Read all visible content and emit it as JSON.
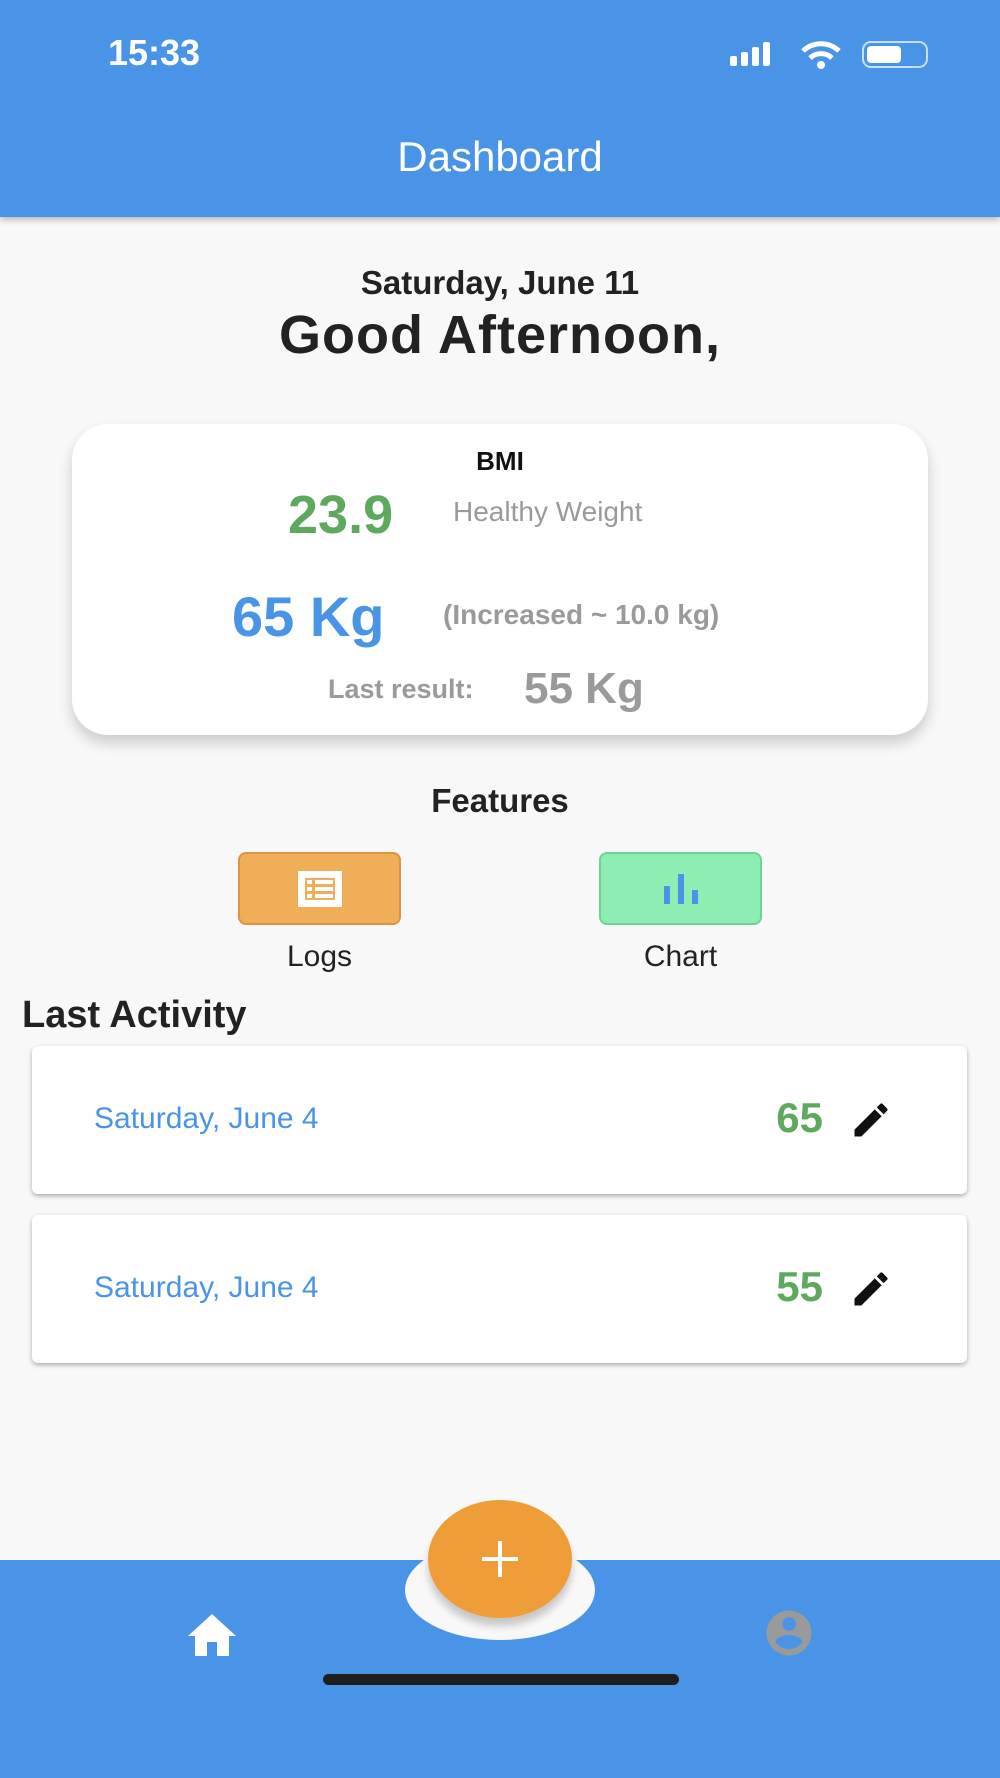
{
  "status_bar": {
    "time": "15:33"
  },
  "header": {
    "title": "Dashboard"
  },
  "greeting": {
    "date": "Saturday, June 11",
    "text": "Good Afternoon,"
  },
  "bmi_card": {
    "label": "BMI",
    "bmi_value": "23.9",
    "bmi_category": "Healthy Weight",
    "weight": "65 Kg",
    "change": "(Increased ~ 10.0 kg)",
    "last_result_label": "Last result:",
    "last_result_value": "55 Kg"
  },
  "features": {
    "title": "Features",
    "items": [
      {
        "label": "Logs",
        "icon": "list-icon",
        "color": "#f0ae58"
      },
      {
        "label": "Chart",
        "icon": "bar-chart-icon",
        "color": "#8eedb3"
      }
    ]
  },
  "last_activity": {
    "title": "Last Activity",
    "rows": [
      {
        "date": "Saturday, June 4",
        "value": "65"
      },
      {
        "date": "Saturday, June 4",
        "value": "55"
      }
    ]
  },
  "bottom_nav": {
    "items": [
      {
        "icon": "home-icon",
        "active": true
      },
      {
        "icon": "account-circle-icon",
        "active": false
      }
    ],
    "fab": "plus-icon"
  },
  "colors": {
    "primary": "#4a94e8",
    "accent": "#ef9d38",
    "green": "#5fa95f"
  }
}
